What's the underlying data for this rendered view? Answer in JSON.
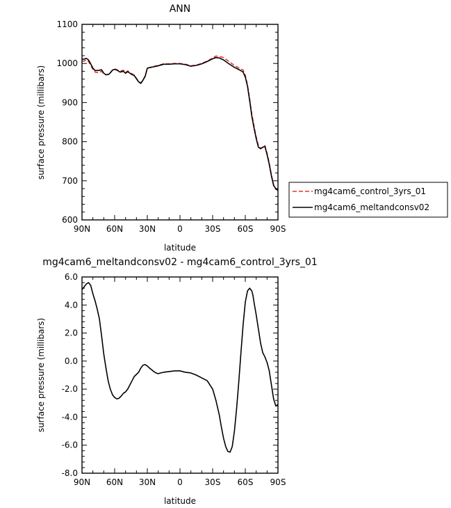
{
  "chart_data": [
    {
      "type": "line",
      "title": "ANN",
      "xlabel": "latitude",
      "ylabel": "surface pressure (millibars)",
      "xlim": [
        90,
        -90
      ],
      "ylim": [
        600,
        1100
      ],
      "xticks": [
        90,
        60,
        30,
        0,
        -30,
        -60,
        -90
      ],
      "xtick_labels": [
        "90N",
        "60N",
        "30N",
        "0",
        "30S",
        "60S",
        "90S"
      ],
      "yticks": [
        600,
        700,
        800,
        900,
        1000,
        1100
      ],
      "ytick_labels": [
        "600",
        "700",
        "800",
        "900",
        "1000",
        "1100"
      ],
      "legend_position": "right",
      "series": [
        {
          "name": "mg4cam6_control_3yrs_01",
          "color": "#e8302a",
          "dash": "dashed",
          "x": [
            90,
            88,
            86,
            84,
            82,
            80,
            78,
            75,
            72,
            70,
            68,
            65,
            62,
            60,
            58,
            55,
            52,
            50,
            48,
            45,
            42,
            40,
            38,
            36,
            34,
            32,
            30,
            25,
            20,
            15,
            10,
            5,
            0,
            -5,
            -10,
            -15,
            -20,
            -25,
            -30,
            -33,
            -36,
            -40,
            -45,
            -50,
            -55,
            -58,
            -60,
            -62,
            -64,
            -66,
            -68,
            -70,
            -72,
            -74,
            -76,
            -78,
            -80,
            -82,
            -84,
            -86,
            -88,
            -90
          ],
          "y": [
            1006,
            1006,
            1009,
            1005,
            995,
            985,
            978,
            976,
            980,
            974,
            971,
            972,
            983,
            986,
            984,
            980,
            983,
            977,
            981,
            975,
            970,
            962,
            954,
            950,
            958,
            968,
            988,
            992,
            995,
            999,
            999,
            1000,
            1000,
            998,
            994,
            996,
            1000,
            1006,
            1014,
            1019,
            1018,
            1015,
            1005,
            995,
            987,
            983,
            970,
            945,
            910,
            870,
            840,
            812,
            790,
            783,
            785,
            790,
            770,
            745,
            715,
            690,
            678,
            678
          ]
        },
        {
          "name": "mg4cam6_meltandconsv02",
          "color": "#000000",
          "dash": "solid",
          "x": [
            90,
            88,
            86,
            84,
            82,
            80,
            78,
            75,
            72,
            70,
            68,
            65,
            62,
            60,
            58,
            55,
            52,
            50,
            48,
            45,
            42,
            40,
            38,
            36,
            34,
            32,
            30,
            25,
            20,
            15,
            10,
            5,
            0,
            -5,
            -10,
            -15,
            -20,
            -25,
            -30,
            -33,
            -36,
            -40,
            -45,
            -50,
            -55,
            -58,
            -60,
            -62,
            -64,
            -66,
            -68,
            -70,
            -72,
            -74,
            -76,
            -78,
            -80,
            -82,
            -84,
            -86,
            -88,
            -90
          ],
          "y": [
            1011,
            1011,
            1013,
            1009,
            999,
            988,
            982,
            982,
            984,
            975,
            971,
            973,
            983,
            985,
            983,
            978,
            980,
            975,
            979,
            973,
            969,
            961,
            953,
            949,
            957,
            967,
            988,
            991,
            994,
            998,
            998,
            999,
            999,
            997,
            993,
            995,
            999,
            1005,
            1012,
            1015,
            1014,
            1009,
            999,
            990,
            983,
            978,
            965,
            942,
            905,
            865,
            835,
            808,
            786,
            782,
            786,
            788,
            767,
            742,
            712,
            688,
            680,
            675
          ]
        }
      ]
    },
    {
      "type": "line",
      "title": "mg4cam6_meltandconsv02 - mg4cam6_control_3yrs_01",
      "xlabel": "latitude",
      "ylabel": "surface pressure (millibars)",
      "xlim": [
        90,
        -90
      ],
      "ylim": [
        -8.0,
        6.0
      ],
      "xticks": [
        90,
        60,
        30,
        0,
        -30,
        -60,
        -90
      ],
      "xtick_labels": [
        "90N",
        "60N",
        "30N",
        "0",
        "30S",
        "60S",
        "90S"
      ],
      "yticks": [
        -8.0,
        -6.0,
        -4.0,
        -2.0,
        0.0,
        2.0,
        4.0,
        6.0
      ],
      "ytick_labels": [
        "-8.0",
        "-6.0",
        "-4.0",
        "-2.0",
        "0.0",
        "2.0",
        "4.0",
        "6.0"
      ],
      "series": [
        {
          "color": "#000000",
          "dash": "solid",
          "x": [
            90,
            88,
            86,
            84,
            82,
            80,
            78,
            76,
            74,
            72,
            70,
            68,
            66,
            64,
            62,
            60,
            58,
            56,
            54,
            52,
            50,
            48,
            46,
            44,
            42,
            40,
            38,
            36,
            34,
            32,
            30,
            28,
            26,
            24,
            22,
            20,
            18,
            15,
            10,
            5,
            0,
            -5,
            -10,
            -15,
            -20,
            -25,
            -30,
            -33,
            -36,
            -38,
            -40,
            -42,
            -44,
            -46,
            -48,
            -50,
            -52,
            -54,
            -56,
            -58,
            -60,
            -62,
            -64,
            -66,
            -67,
            -68,
            -70,
            -72,
            -74,
            -76,
            -78,
            -80,
            -82,
            -84,
            -86,
            -88,
            -90
          ],
          "y": [
            5.1,
            5.3,
            5.5,
            5.6,
            5.4,
            4.8,
            4.3,
            3.7,
            3.0,
            1.8,
            0.5,
            -0.5,
            -1.4,
            -2.0,
            -2.4,
            -2.6,
            -2.7,
            -2.65,
            -2.5,
            -2.3,
            -2.2,
            -2.0,
            -1.7,
            -1.4,
            -1.1,
            -0.95,
            -0.8,
            -0.5,
            -0.3,
            -0.25,
            -0.35,
            -0.5,
            -0.62,
            -0.75,
            -0.85,
            -0.9,
            -0.85,
            -0.8,
            -0.75,
            -0.7,
            -0.7,
            -0.8,
            -0.85,
            -1.0,
            -1.2,
            -1.4,
            -2.0,
            -2.8,
            -3.8,
            -4.7,
            -5.5,
            -6.1,
            -6.45,
            -6.5,
            -6.1,
            -5.0,
            -3.4,
            -1.5,
            0.6,
            2.6,
            4.2,
            5.0,
            5.2,
            5.0,
            4.7,
            4.2,
            3.3,
            2.3,
            1.3,
            0.6,
            0.3,
            -0.1,
            -0.7,
            -1.7,
            -2.7,
            -3.2,
            -3.1
          ]
        }
      ]
    }
  ]
}
